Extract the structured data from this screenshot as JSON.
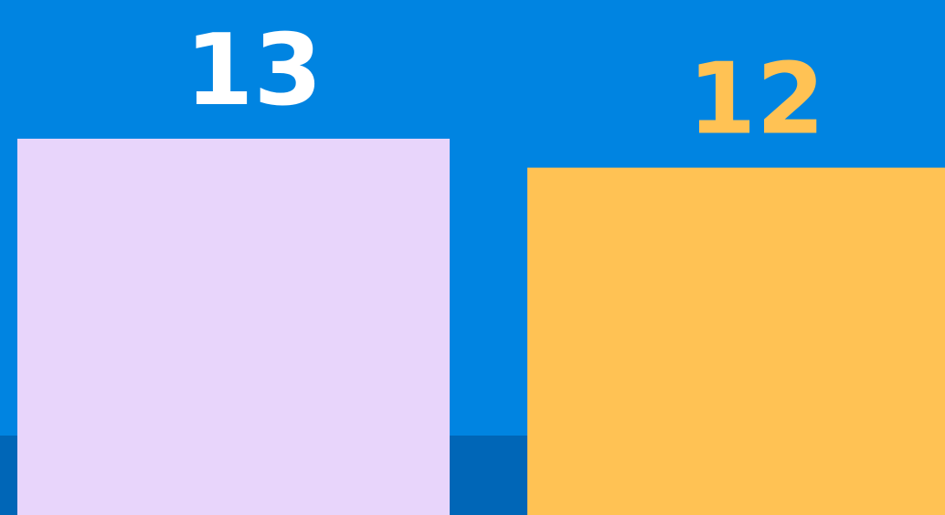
{
  "chart_data": {
    "type": "bar",
    "categories": [
      "",
      ""
    ],
    "values": [
      13,
      12
    ],
    "ylim": [
      0,
      13.9
    ],
    "grid": false,
    "legend": "none",
    "bar_colors": [
      "#e8d5fb",
      "#ffc254"
    ],
    "label_colors": [
      "#ffffff",
      "#ffc254"
    ]
  },
  "colors": {
    "background": "#0084e1",
    "bottom_band": "#0066b7"
  }
}
